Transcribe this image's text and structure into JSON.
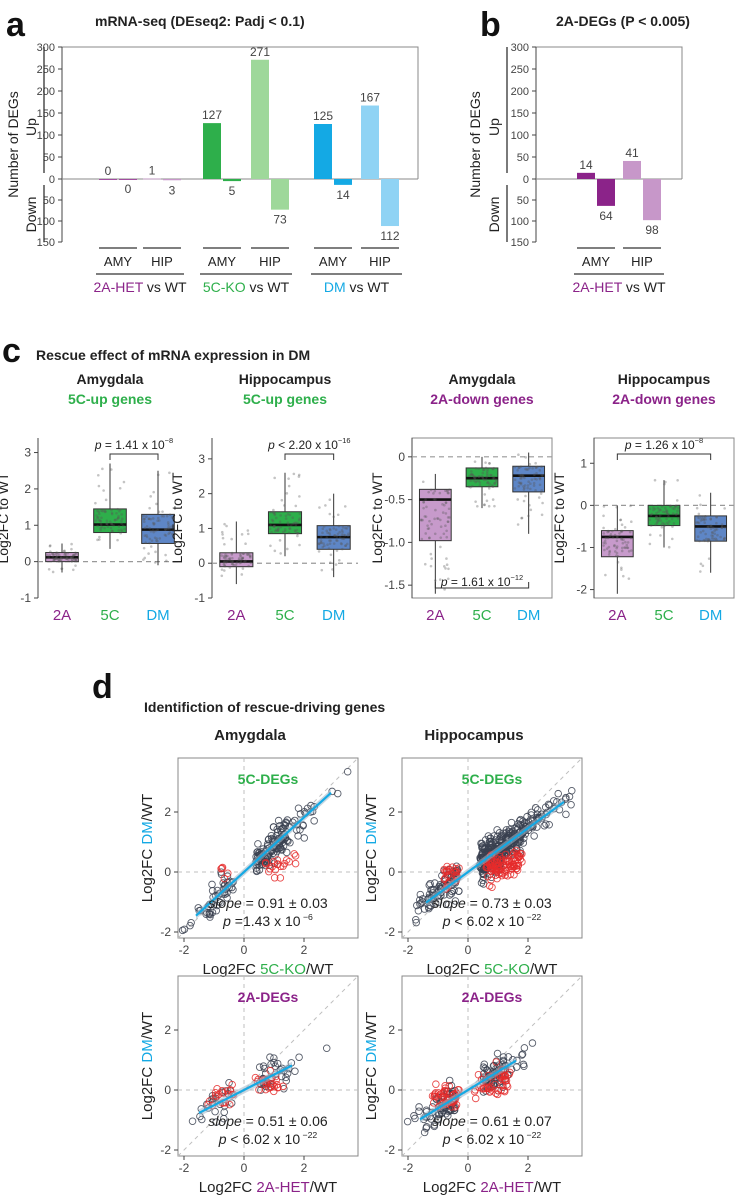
{
  "colors": {
    "het": "#8B2389",
    "het_light": "#C797C9",
    "ko": "#2EAF4B",
    "ko_light": "#9ED89A",
    "dm": "#14A9E4",
    "dm_light": "#8FD3F4",
    "box_2a": "#C79ACB",
    "box_5c": "#2EAF4B",
    "box_dm": "#5E86C6",
    "red": "#E52B2B",
    "dark": "#3A4150",
    "grid": "#BFBFBF"
  },
  "panel_labels": {
    "a": "a",
    "b": "b",
    "c": "c",
    "d": "d"
  },
  "chart_data": [
    {
      "id": "a",
      "type": "bar",
      "title": "mRNA-seq (DEseq2: Padj < 0.1)",
      "ylabel": "Number of DEGs",
      "up_label": "Up",
      "down_label": "Down",
      "ylim": [
        -150,
        300
      ],
      "up_ticks": [
        "300",
        "250",
        "200",
        "150",
        "100",
        "50",
        "0"
      ],
      "down_ticks": [
        "50",
        "100",
        "150"
      ],
      "region_labels": [
        "AMY",
        "HIP",
        "AMY",
        "HIP",
        "AMY",
        "HIP"
      ],
      "group_labels": [
        {
          "name": "2A-HET",
          "suffix": " vs WT"
        },
        {
          "name": "5C-KO",
          "suffix": " vs WT"
        },
        {
          "name": "DM",
          "suffix": " vs WT"
        }
      ],
      "series": [
        {
          "name": "2A-HET vs WT",
          "up": [
            0,
            1
          ],
          "down": [
            0,
            3
          ],
          "up_labels": [
            "0",
            "1"
          ],
          "down_labels": [
            "0",
            "3"
          ]
        },
        {
          "name": "5C-KO vs WT",
          "up": [
            127,
            271
          ],
          "down": [
            5,
            73
          ],
          "up_labels": [
            "127",
            "271"
          ],
          "down_labels": [
            "5",
            "73"
          ]
        },
        {
          "name": "DM vs WT",
          "up": [
            125,
            167
          ],
          "down": [
            14,
            112
          ],
          "up_labels": [
            "125",
            "167"
          ],
          "down_labels": [
            "14",
            "112"
          ]
        }
      ]
    },
    {
      "id": "b",
      "type": "bar",
      "title": "2A-DEGs (P < 0.005)",
      "ylabel": "Number of DEGs",
      "up_label": "Up",
      "down_label": "Down",
      "ylim": [
        -150,
        300
      ],
      "up_ticks": [
        "300",
        "250",
        "200",
        "150",
        "100",
        "50",
        "0"
      ],
      "down_ticks": [
        "50",
        "100",
        "150"
      ],
      "region_labels": [
        "AMY",
        "HIP"
      ],
      "group_labels": [
        {
          "name": "2A-HET",
          "suffix": " vs WT"
        }
      ],
      "series": [
        {
          "name": "2A-HET vs WT",
          "up": [
            14,
            41
          ],
          "down": [
            64,
            98
          ],
          "up_labels": [
            "14",
            "41"
          ],
          "down_labels": [
            "64",
            "98"
          ]
        }
      ]
    },
    {
      "id": "c",
      "type": "box",
      "title": "Rescue effect of mRNA expression in DM",
      "ylabel": "Log2FC to WT",
      "categories": [
        "2A",
        "5C",
        "DM"
      ],
      "subplots": [
        {
          "region": "Amygdala",
          "gene_set": "5C-up genes",
          "ylim": [
            -1,
            3.4
          ],
          "yticks": [
            "-1",
            "0",
            "1",
            "2",
            "3"
          ],
          "boxes": [
            {
              "q1": 0.0,
              "median": 0.12,
              "q3": 0.25,
              "whisker_low": -0.3,
              "whisker_high": 0.5
            },
            {
              "q1": 0.8,
              "median": 1.02,
              "q3": 1.45,
              "whisker_low": 0.35,
              "whisker_high": 2.7
            },
            {
              "q1": 0.5,
              "median": 0.88,
              "q3": 1.3,
              "whisker_low": -0.1,
              "whisker_high": 2.5
            }
          ],
          "pvalue": {
            "text": "p = 1.41 x 10",
            "exp": "−8",
            "between": [
              1,
              2
            ],
            "pos": "top"
          }
        },
        {
          "region": "Hippocampus",
          "gene_set": "5C-up genes",
          "ylim": [
            -1,
            3.6
          ],
          "yticks": [
            "-1",
            "0",
            "1",
            "2",
            "3"
          ],
          "boxes": [
            {
              "q1": -0.1,
              "median": 0.05,
              "q3": 0.3,
              "whisker_low": -0.6,
              "whisker_high": 1.2
            },
            {
              "q1": 0.85,
              "median": 1.1,
              "q3": 1.48,
              "whisker_low": 0.2,
              "whisker_high": 2.6
            },
            {
              "q1": 0.4,
              "median": 0.75,
              "q3": 1.08,
              "whisker_low": -0.4,
              "whisker_high": 2.0
            }
          ],
          "pvalue": {
            "text": "p < 2.20 x 10",
            "exp": "−16",
            "between": [
              1,
              2
            ],
            "pos": "top"
          }
        },
        {
          "region": "Amygdala",
          "gene_set": "2A-down genes",
          "ylim": [
            -1.65,
            0.22
          ],
          "yticks": [
            "-1.5",
            "-1.0",
            "-0.5",
            "0"
          ],
          "boxes": [
            {
              "q1": -0.98,
              "median": -0.5,
              "q3": -0.38,
              "whisker_low": -1.6,
              "whisker_high": -0.2
            },
            {
              "q1": -0.35,
              "median": -0.25,
              "q3": -0.13,
              "whisker_low": -0.6,
              "whisker_high": 0.0
            },
            {
              "q1": -0.41,
              "median": -0.22,
              "q3": -0.11,
              "whisker_low": -0.9,
              "whisker_high": 0.05
            }
          ],
          "pvalue": {
            "text": "p = 1.61 x 10",
            "exp": "−12",
            "between": [
              0,
              2
            ],
            "pos": "bottom"
          }
        },
        {
          "region": "Hippocampus",
          "gene_set": "2A-down genes",
          "ylim": [
            -2.2,
            1.6
          ],
          "yticks": [
            "-2",
            "-1",
            "0",
            "1"
          ],
          "boxes": [
            {
              "q1": -1.22,
              "median": -0.75,
              "q3": -0.6,
              "whisker_low": -2.1,
              "whisker_high": 0.0
            },
            {
              "q1": -0.48,
              "median": -0.25,
              "q3": 0.0,
              "whisker_low": -1.0,
              "whisker_high": 0.6
            },
            {
              "q1": -0.85,
              "median": -0.5,
              "q3": -0.25,
              "whisker_low": -1.6,
              "whisker_high": 0.3
            }
          ],
          "pvalue": {
            "text": "p = 1.26 x 10",
            "exp": "−8",
            "between": [
              0,
              2
            ],
            "pos": "top"
          }
        }
      ]
    },
    {
      "id": "d",
      "type": "scatter",
      "title": "Identifiction of rescue-driving genes",
      "column_titles": [
        "Amygdala",
        "Hippocampus"
      ],
      "xlim": [
        -2.2,
        3.8
      ],
      "ylim": [
        -2.2,
        3.8
      ],
      "ticks": [
        "-2",
        "0",
        "2"
      ],
      "ylabel": {
        "prefix": "Log2FC ",
        "colored": "DM",
        "suffix": "/WT"
      },
      "subplots": [
        {
          "set": "5C-DEGs",
          "xlabel": {
            "prefix": "Log2FC ",
            "colored": "5C-KO",
            "suffix": "/WT"
          },
          "slope_value": " = 0.91 ± 0.03",
          "p_text": "p",
          "p_value": " =1.43 x 10",
          "p_exp": " −6",
          "fit_slope": 0.91,
          "fit_range": [
            -1.6,
            2.9
          ],
          "seed": 11,
          "n_dark": 190,
          "n_red": 25,
          "dist": "5c",
          "spread": [
            1.0,
            0.8
          ]
        },
        {
          "set": "5C-DEGs",
          "xlabel": {
            "prefix": "Log2FC ",
            "colored": "5C-KO",
            "suffix": "/WT"
          },
          "slope_value": " = 0.73 ± 0.03",
          "p_text": "p",
          "p_value": " < 6.02 x 10",
          "p_exp": " −22",
          "fit_slope": 0.73,
          "fit_range": [
            -1.4,
            3.2
          ],
          "seed": 27,
          "n_dark": 420,
          "n_red": 130,
          "dist": "5c",
          "spread": [
            1.1,
            0.9
          ]
        },
        {
          "set": "2A-DEGs",
          "xlabel": {
            "prefix": "Log2FC ",
            "colored": "2A-HET",
            "suffix": "/WT"
          },
          "slope_value": " = 0.51 ± 0.06",
          "p_text": "p",
          "p_value": " < 6.02 x 10",
          "p_exp": " −22",
          "fit_slope": 0.51,
          "fit_range": [
            -1.5,
            1.6
          ],
          "seed": 5,
          "n_dark": 60,
          "n_red": 45,
          "dist": "2a",
          "spread": [
            0.7,
            0.4
          ]
        },
        {
          "set": "2A-DEGs",
          "xlabel": {
            "prefix": "Log2FC ",
            "colored": "2A-HET",
            "suffix": "/WT"
          },
          "slope_value": " = 0.61 ± 0.07",
          "p_text": "p",
          "p_value": " < 6.02 x 10",
          "p_exp": " −22",
          "fit_slope": 0.61,
          "fit_range": [
            -1.6,
            1.6
          ],
          "seed": 42,
          "n_dark": 150,
          "n_red": 90,
          "dist": "2a",
          "spread": [
            0.7,
            0.5
          ]
        }
      ],
      "slope_word": "slope"
    }
  ]
}
